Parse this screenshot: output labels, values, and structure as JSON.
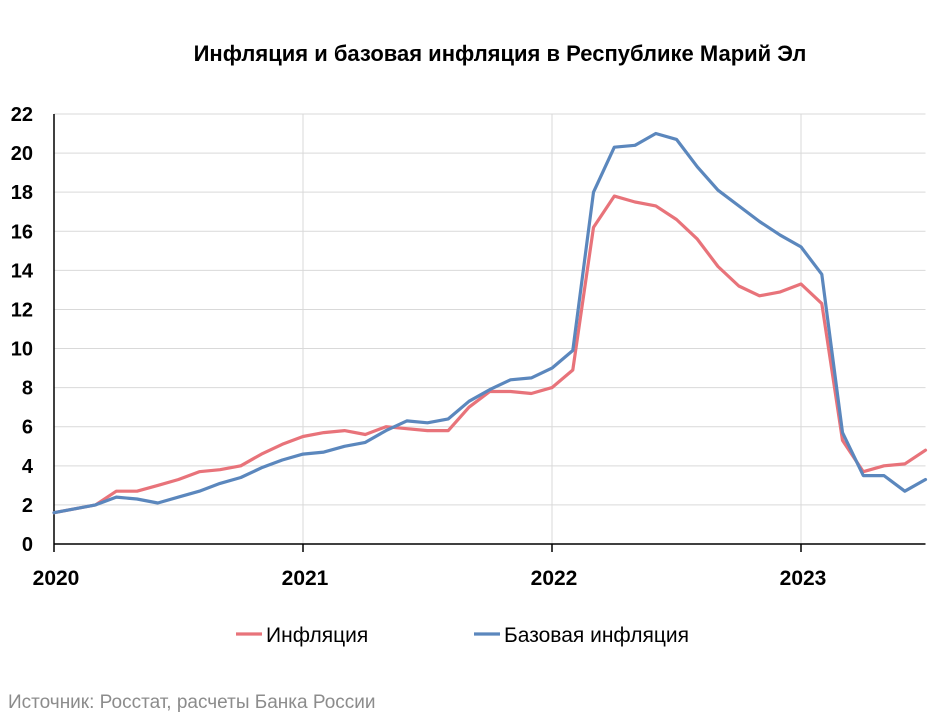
{
  "title": "Инфляция и базовая инфляция в Республике Марий Эл",
  "source": "Источник: Росстат, расчеты Банка России",
  "colors": {
    "inflation": "#e8737a",
    "core_inflation": "#5b87bd"
  },
  "chart_data": {
    "type": "line",
    "title": "Инфляция и базовая инфляция в Республике Марий Эл",
    "xlabel": "",
    "ylabel": "",
    "ylim": [
      0,
      22
    ],
    "yticks": [
      "0",
      "2",
      "4",
      "6",
      "8",
      "10",
      "12",
      "14",
      "16",
      "18",
      "20",
      "22"
    ],
    "xticks": [
      "2020",
      "2021",
      "2022",
      "2023"
    ],
    "grid": true,
    "legend": "bottom",
    "x": [
      "2020-01",
      "2020-02",
      "2020-03",
      "2020-04",
      "2020-05",
      "2020-06",
      "2020-07",
      "2020-08",
      "2020-09",
      "2020-10",
      "2020-11",
      "2020-12",
      "2021-01",
      "2021-02",
      "2021-03",
      "2021-04",
      "2021-05",
      "2021-06",
      "2021-07",
      "2021-08",
      "2021-09",
      "2021-10",
      "2021-11",
      "2021-12",
      "2022-01",
      "2022-02",
      "2022-03",
      "2022-04",
      "2022-05",
      "2022-06",
      "2022-07",
      "2022-08",
      "2022-09",
      "2022-10",
      "2022-11",
      "2022-12",
      "2023-01",
      "2023-02",
      "2023-03",
      "2023-04",
      "2023-05",
      "2023-06",
      "2023-07"
    ],
    "series": [
      {
        "name": "Инфляция",
        "values": [
          1.6,
          1.8,
          2.0,
          2.7,
          2.7,
          3.0,
          3.3,
          3.7,
          3.8,
          4.0,
          4.6,
          5.1,
          5.5,
          5.7,
          5.8,
          5.6,
          6.0,
          5.9,
          5.8,
          5.8,
          7.0,
          7.8,
          7.8,
          7.7,
          8.0,
          8.9,
          16.2,
          17.8,
          17.5,
          17.3,
          16.6,
          15.6,
          14.2,
          13.2,
          12.7,
          12.9,
          13.3,
          12.3,
          5.3,
          3.7,
          4.0,
          4.1,
          4.8
        ]
      },
      {
        "name": "Базовая инфляция",
        "values": [
          1.6,
          1.8,
          2.0,
          2.4,
          2.3,
          2.1,
          2.4,
          2.7,
          3.1,
          3.4,
          3.9,
          4.3,
          4.6,
          4.7,
          5.0,
          5.2,
          5.8,
          6.3,
          6.2,
          6.4,
          7.3,
          7.9,
          8.4,
          8.5,
          9.0,
          9.9,
          18.0,
          20.3,
          20.4,
          21.0,
          20.7,
          19.3,
          18.1,
          17.3,
          16.5,
          15.8,
          15.2,
          13.8,
          5.7,
          3.5,
          3.5,
          2.7,
          3.3
        ]
      }
    ]
  }
}
